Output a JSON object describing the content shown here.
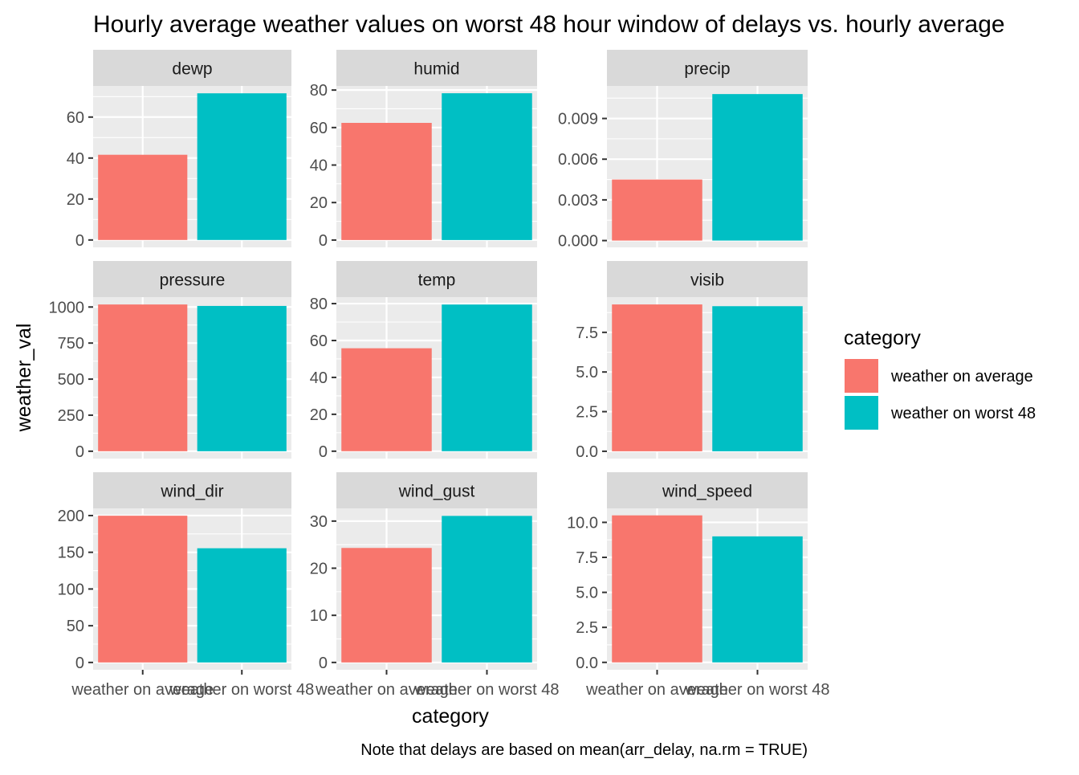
{
  "chart_data": {
    "type": "bar",
    "title": "Hourly average weather values on worst 48 hour window of delays vs. hourly average",
    "caption": "Note that delays are based on mean(arr_delay, na.rm = TRUE)",
    "xlabel": "category",
    "ylabel": "weather_val",
    "categories": [
      "weather on average",
      "weather on worst 48"
    ],
    "legend": {
      "title": "category",
      "position": "right",
      "entries": [
        {
          "label": "weather on average",
          "color": "#F8766D"
        },
        {
          "label": "weather on worst 48",
          "color": "#00BFC4"
        }
      ]
    },
    "colors": {
      "weather on average": "#F8766D",
      "weather on worst 48": "#00BFC4",
      "panel_background": "#EBEBEB",
      "strip_background": "#D9D9D9",
      "grid": "#FFFFFF"
    },
    "grid": true,
    "facets": [
      {
        "name": "dewp",
        "values": [
          41.6,
          71.6
        ],
        "ylim": [
          -3.6,
          75.2
        ],
        "ticks": [
          0,
          20,
          40,
          60
        ],
        "tick_labels": [
          "0",
          "20",
          "40",
          "60"
        ]
      },
      {
        "name": "humid",
        "values": [
          62.5,
          78.3
        ],
        "ylim": [
          -3.9,
          82.2
        ],
        "ticks": [
          0,
          20,
          40,
          60,
          80
        ],
        "tick_labels": [
          "0",
          "20",
          "40",
          "60",
          "80"
        ]
      },
      {
        "name": "precip",
        "values": [
          0.0045,
          0.0108
        ],
        "ylim": [
          -0.0005,
          0.0114
        ],
        "ticks": [
          0,
          0.003,
          0.006,
          0.009
        ],
        "tick_labels": [
          "0.000",
          "0.003",
          "0.006",
          "0.009"
        ]
      },
      {
        "name": "pressure",
        "values": [
          1017.5,
          1007.5
        ],
        "ylim": [
          -50.9,
          1068.4
        ],
        "ticks": [
          0,
          250,
          500,
          750,
          1000
        ],
        "tick_labels": [
          "0",
          "250",
          "500",
          "750",
          "1000"
        ]
      },
      {
        "name": "temp",
        "values": [
          55.8,
          79.5
        ],
        "ylim": [
          -4.0,
          83.5
        ],
        "ticks": [
          0,
          20,
          40,
          60,
          80
        ],
        "tick_labels": [
          "0",
          "20",
          "40",
          "60",
          "80"
        ]
      },
      {
        "name": "visib",
        "values": [
          9.26,
          9.15
        ],
        "ylim": [
          -0.46,
          9.72
        ],
        "ticks": [
          0,
          2.5,
          5.0,
          7.5
        ],
        "tick_labels": [
          "0.0",
          "2.5",
          "5.0",
          "7.5"
        ]
      },
      {
        "name": "wind_dir",
        "values": [
          199.8,
          155.5
        ],
        "ylim": [
          -10.0,
          209.8
        ],
        "ticks": [
          0,
          50,
          100,
          150,
          200
        ],
        "tick_labels": [
          "0",
          "50",
          "100",
          "150",
          "200"
        ]
      },
      {
        "name": "wind_gust",
        "values": [
          24.3,
          31.1
        ],
        "ylim": [
          -1.56,
          32.7
        ],
        "ticks": [
          0,
          10,
          20,
          30
        ],
        "tick_labels": [
          "0",
          "10",
          "20",
          "30"
        ]
      },
      {
        "name": "wind_speed",
        "values": [
          10.5,
          9.0
        ],
        "ylim": [
          -0.53,
          11.0
        ],
        "ticks": [
          0,
          2.5,
          5.0,
          7.5,
          10.0
        ],
        "tick_labels": [
          "0.0",
          "2.5",
          "5.0",
          "7.5",
          "10.0"
        ]
      }
    ]
  }
}
